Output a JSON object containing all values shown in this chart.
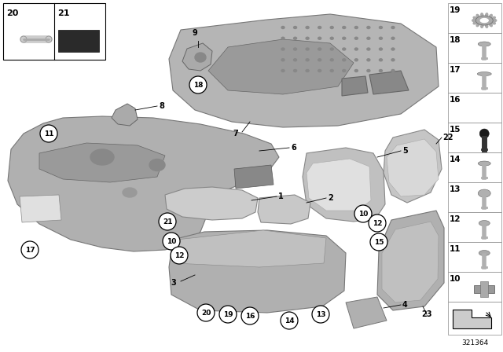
{
  "background_color": "#ffffff",
  "diagram_number": "321364",
  "part_gray": "#b8b8b8",
  "part_light": "#cccccc",
  "part_dark": "#9a9a9a",
  "edge_color": "#777777",
  "right_panel_items": [
    {
      "num": "19",
      "shape": "gear"
    },
    {
      "num": "18",
      "shape": "bolt_flat_head"
    },
    {
      "num": "17",
      "shape": "bolt_countersunk"
    },
    {
      "num": "16",
      "shape": "nut_clip"
    },
    {
      "num": "15",
      "shape": "bolt_black"
    },
    {
      "num": "14",
      "shape": "bolt_flat_head"
    },
    {
      "num": "13",
      "shape": "bolt_round"
    },
    {
      "num": "12",
      "shape": "bolt_pan"
    },
    {
      "num": "11",
      "shape": "bolt_pan2"
    },
    {
      "num": "10",
      "shape": "tclip"
    }
  ]
}
